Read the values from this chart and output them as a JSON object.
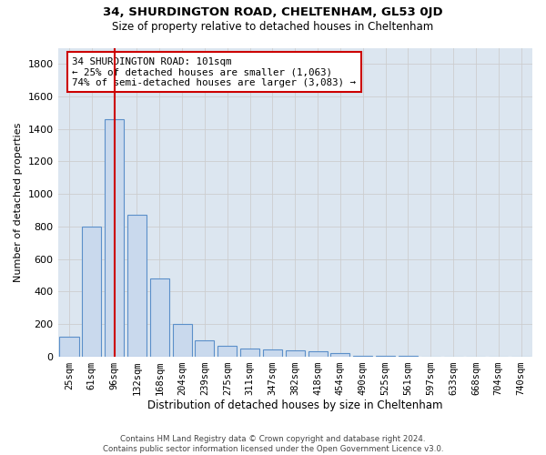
{
  "title": "34, SHURDINGTON ROAD, CHELTENHAM, GL53 0JD",
  "subtitle": "Size of property relative to detached houses in Cheltenham",
  "xlabel": "Distribution of detached houses by size in Cheltenham",
  "ylabel": "Number of detached properties",
  "footer_line1": "Contains HM Land Registry data © Crown copyright and database right 2024.",
  "footer_line2": "Contains public sector information licensed under the Open Government Licence v3.0.",
  "bar_color": "#c9d9ed",
  "bar_edge_color": "#5b8fc9",
  "grid_color": "#cccccc",
  "plot_bg_color": "#dce6f0",
  "background_color": "#ffffff",
  "categories": [
    "25sqm",
    "61sqm",
    "96sqm",
    "132sqm",
    "168sqm",
    "204sqm",
    "239sqm",
    "275sqm",
    "311sqm",
    "347sqm",
    "382sqm",
    "418sqm",
    "454sqm",
    "490sqm",
    "525sqm",
    "561sqm",
    "597sqm",
    "633sqm",
    "668sqm",
    "704sqm",
    "740sqm"
  ],
  "values": [
    120,
    800,
    1460,
    870,
    480,
    200,
    100,
    65,
    50,
    40,
    35,
    30,
    20,
    5,
    2,
    1,
    0,
    0,
    0,
    0,
    0
  ],
  "highlight_bar_index": 2,
  "highlight_line_color": "#cc0000",
  "annotation_text": "34 SHURDINGTON ROAD: 101sqm\n← 25% of detached houses are smaller (1,063)\n74% of semi-detached houses are larger (3,083) →",
  "annotation_box_color": "#cc0000",
  "ylim": [
    0,
    1900
  ],
  "yticks": [
    0,
    200,
    400,
    600,
    800,
    1000,
    1200,
    1400,
    1600,
    1800
  ]
}
